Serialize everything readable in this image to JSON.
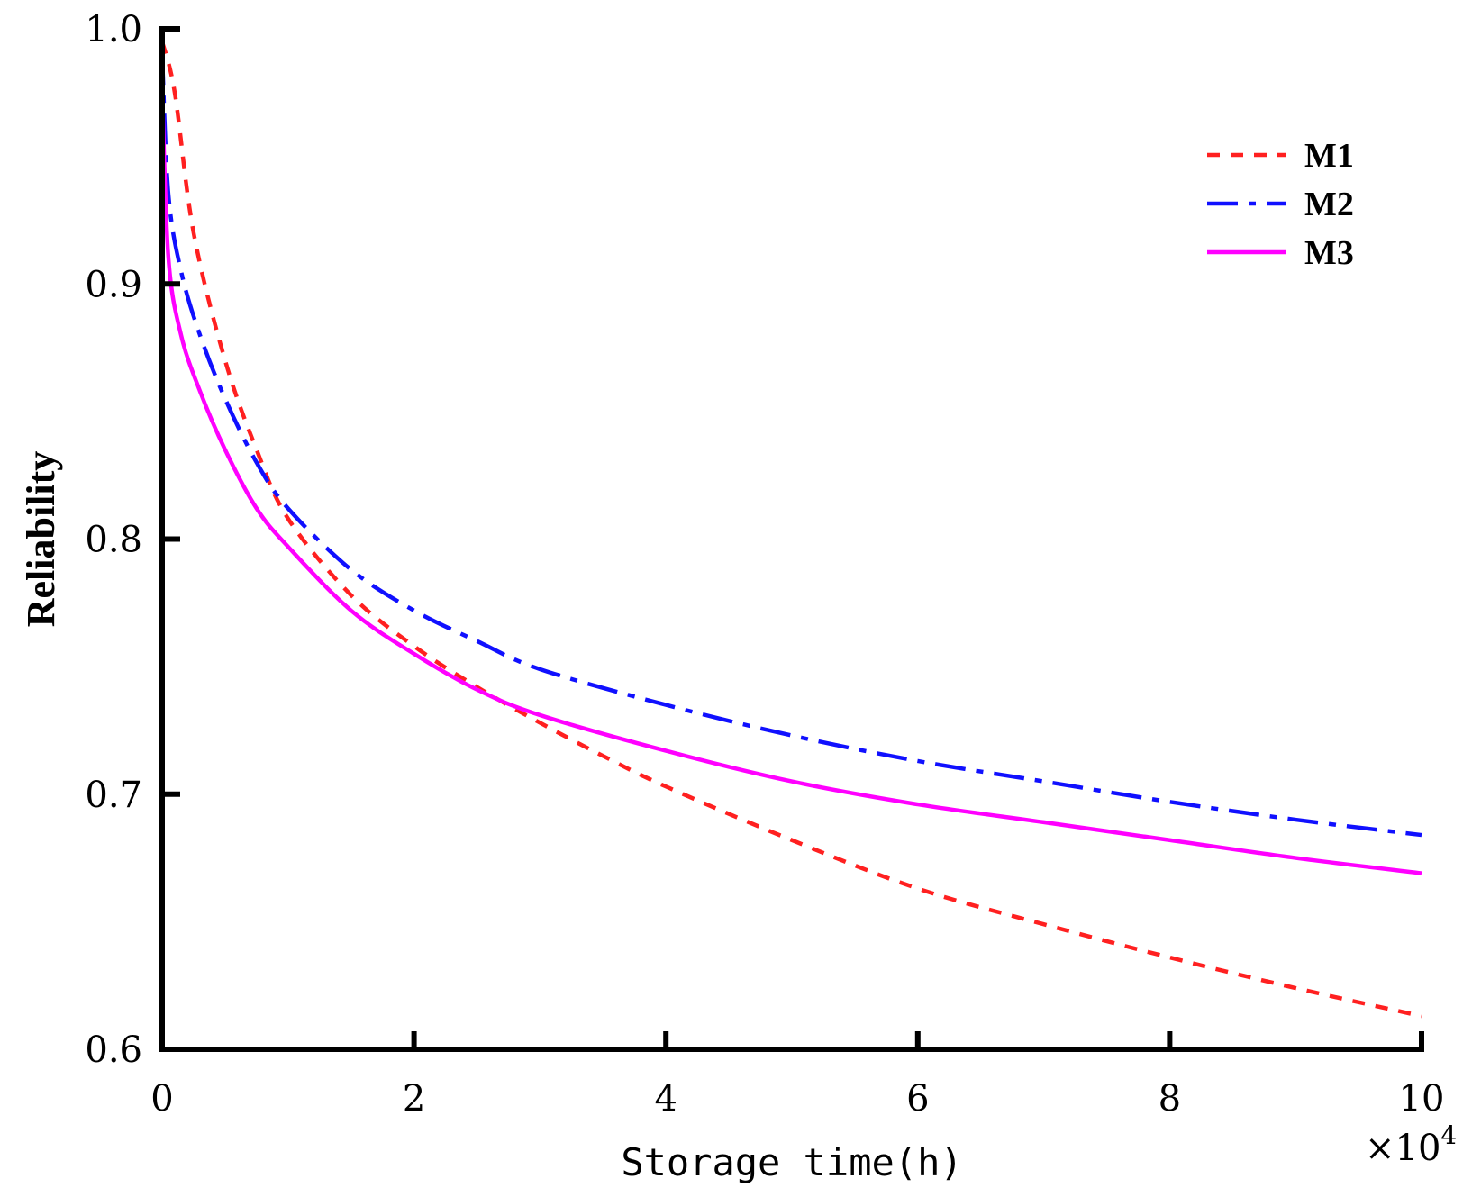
{
  "chart_data": {
    "type": "line",
    "title": "",
    "xlabel": "Storage time(h)",
    "ylabel": "Reliability",
    "x_multiplier": "×10",
    "x_multiplier_exponent": "4",
    "xlim": [
      0,
      10
    ],
    "ylim": [
      0.6,
      1.0
    ],
    "xticks": [
      0,
      2,
      4,
      6,
      8,
      10
    ],
    "xtick_labels": [
      "0",
      "2",
      "4",
      "6",
      "8",
      "10"
    ],
    "yticks": [
      0.6,
      0.7,
      0.8,
      0.9,
      1.0
    ],
    "ytick_labels": [
      "0.6",
      "0.7",
      "0.8",
      "0.9",
      "1.0"
    ],
    "grid": false,
    "legend_position": "top-right",
    "series": [
      {
        "name": "M1",
        "color": "#ff2020",
        "style": "dotted",
        "x": [
          0,
          0.1,
          0.25,
          0.5,
          0.75,
          1,
          1.5,
          2,
          2.5,
          3,
          3.5,
          4,
          5,
          6,
          7,
          8,
          9,
          10
        ],
        "y": [
          0.995,
          0.975,
          0.92,
          0.87,
          0.835,
          0.808,
          0.778,
          0.758,
          0.742,
          0.728,
          0.715,
          0.703,
          0.682,
          0.663,
          0.649,
          0.636,
          0.624,
          0.613
        ]
      },
      {
        "name": "M2",
        "color": "#1010ff",
        "style": "dashdot",
        "x": [
          0,
          0.05,
          0.15,
          0.3,
          0.5,
          0.75,
          1,
          1.5,
          2,
          2.5,
          3,
          4,
          5,
          6,
          7,
          8,
          9,
          10
        ],
        "y": [
          0.99,
          0.935,
          0.905,
          0.88,
          0.855,
          0.83,
          0.812,
          0.788,
          0.772,
          0.76,
          0.749,
          0.735,
          0.723,
          0.713,
          0.705,
          0.697,
          0.69,
          0.684
        ]
      },
      {
        "name": "M3",
        "color": "#ff00ff",
        "style": "solid",
        "x": [
          0,
          0.05,
          0.15,
          0.3,
          0.5,
          0.75,
          1,
          1.5,
          2,
          2.5,
          3,
          4,
          5,
          6,
          7,
          8,
          9,
          10
        ],
        "y": [
          0.975,
          0.91,
          0.88,
          0.858,
          0.835,
          0.812,
          0.797,
          0.772,
          0.755,
          0.741,
          0.731,
          0.717,
          0.705,
          0.696,
          0.689,
          0.682,
          0.675,
          0.669
        ]
      }
    ]
  }
}
